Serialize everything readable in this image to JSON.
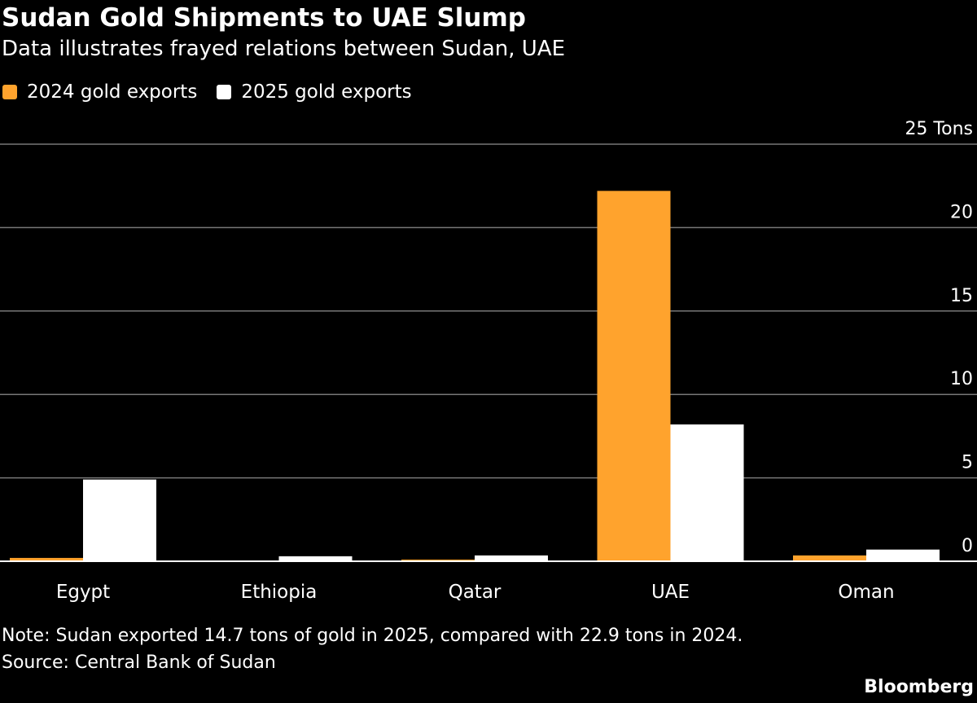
{
  "title": "Sudan Gold Shipments to UAE Slump",
  "subtitle": "Data illustrates frayed relations between Sudan, UAE",
  "note": "Note: Sudan exported 14.7 tons of gold in 2025, compared with 22.9 tons in 2024.",
  "source": "Source: Central Bank of Sudan",
  "brand": "Bloomberg",
  "colors": {
    "series_2024": "#ffa32d",
    "series_2025": "#ffffff",
    "grid": "#777777",
    "background": "#000000"
  },
  "chart_data": {
    "type": "bar",
    "title": "Sudan Gold Shipments to UAE Slump",
    "subtitle": "Data illustrates frayed relations between Sudan, UAE",
    "categories": [
      "Egypt",
      "Ethiopia",
      "Qatar",
      "UAE",
      "Oman"
    ],
    "series": [
      {
        "name": "2024 gold exports",
        "color": "#ffa32d",
        "values": [
          0.2,
          0,
          0.1,
          22.2,
          0.35
        ]
      },
      {
        "name": "2025 gold exports",
        "color": "#ffffff",
        "values": [
          4.9,
          0.3,
          0.35,
          8.2,
          0.7
        ]
      }
    ],
    "ylim": [
      0,
      25
    ],
    "yticks": [
      0,
      5,
      10,
      15,
      20,
      25
    ],
    "ytick_labels": [
      "0",
      "5",
      "10",
      "15",
      "20",
      "25 Tons"
    ],
    "ylabel": "",
    "xlabel": "",
    "grid": true,
    "y_axis_side": "right",
    "legend_position": "top-left"
  }
}
